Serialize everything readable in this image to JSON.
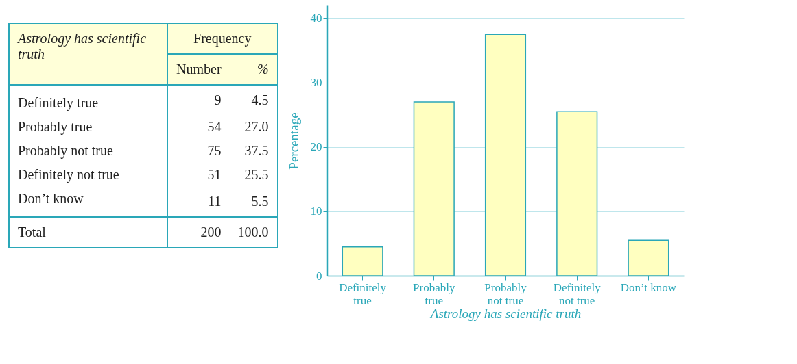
{
  "chart_data": [
    {
      "type": "other",
      "title": "Frequency",
      "xlabel": "Astrology has scientific truth",
      "categories": [
        "Definitely true",
        "Probably true",
        "Probably not true",
        "Definitely not true",
        "Don’t know",
        "Total"
      ],
      "data_labels": true,
      "series": [
        {
          "name": "Number",
          "values": [
            9,
            54,
            75,
            51,
            11,
            200
          ]
        },
        {
          "name": "%",
          "values": [
            4.5,
            27,
            37.5,
            25.5,
            5.5,
            100
          ],
          "value_labels": [
            "4.5",
            "27.0",
            "37.5",
            "25.5",
            "5.5",
            "100.0"
          ]
        }
      ]
    },
    {
      "type": "bar",
      "xlabel": "Astrology has scientific truth",
      "ylabel": "Percentage",
      "categories": [
        "Definitely true",
        "Probably true",
        "Probably not true",
        "Definitely not true",
        "Don’t know"
      ],
      "values": [
        4.5,
        27,
        37.5,
        25.5,
        5.5
      ],
      "color": "#ffffc0",
      "ylim": [
        0,
        42
      ],
      "yticks": [
        0,
        10,
        20,
        30,
        40
      ],
      "grid": "y"
    }
  ]
}
